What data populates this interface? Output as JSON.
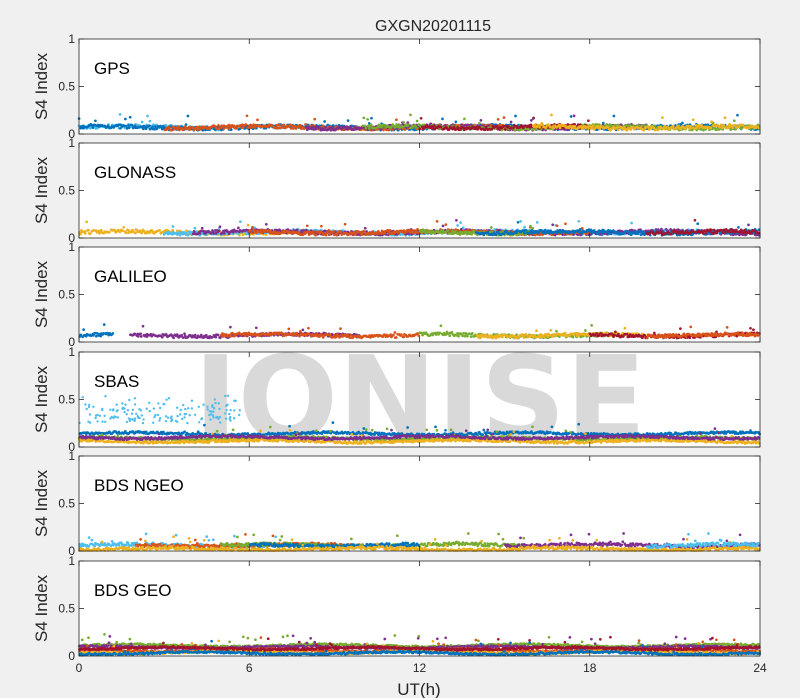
{
  "chart_data": {
    "title": "GXGN20201115",
    "type": "scatter",
    "xlabel": "UT(h)",
    "xlim": [
      0,
      24
    ],
    "xticks": [
      "0",
      "6",
      "12",
      "18",
      "24"
    ],
    "watermark": "IONISE",
    "series_colors": [
      "#0072BD",
      "#D95319",
      "#EDB120",
      "#7E2F8E",
      "#77AC30",
      "#4DBEEE",
      "#A2142F"
    ],
    "panels": [
      {
        "label": "GPS",
        "ylabel": "S4 Index",
        "ylim": [
          0,
          1
        ],
        "yticks": [
          "0",
          "0.5",
          "1"
        ],
        "baseline": 0.07,
        "spread": 0.04,
        "segments": [
          {
            "color": 5,
            "x0": 0,
            "x1": 5
          },
          {
            "color": 0,
            "x0": 0,
            "x1": 24
          },
          {
            "color": 1,
            "x0": 3,
            "x1": 15
          },
          {
            "color": 3,
            "x0": 8,
            "x1": 20
          },
          {
            "color": 4,
            "x0": 10,
            "x1": 24
          },
          {
            "color": 6,
            "x0": 12,
            "x1": 18
          },
          {
            "color": 2,
            "x0": 16,
            "x1": 24
          }
        ]
      },
      {
        "label": "GLONASS",
        "ylabel": "S4 Index",
        "ylim": [
          0,
          1
        ],
        "yticks": [
          "0",
          "0.5",
          "1"
        ],
        "baseline": 0.06,
        "spread": 0.04,
        "segments": [
          {
            "color": 2,
            "x0": 0,
            "x1": 8
          },
          {
            "color": 5,
            "x0": 3,
            "x1": 22
          },
          {
            "color": 3,
            "x0": 4,
            "x1": 24
          },
          {
            "color": 1,
            "x0": 6,
            "x1": 18
          },
          {
            "color": 4,
            "x0": 12,
            "x1": 16
          },
          {
            "color": 0,
            "x0": 14,
            "x1": 24
          },
          {
            "color": 6,
            "x0": 20,
            "x1": 24
          }
        ]
      },
      {
        "label": "GALILEO",
        "ylabel": "S4 Index",
        "ylim": [
          0,
          1
        ],
        "yticks": [
          "0",
          "0.5",
          "1"
        ],
        "baseline": 0.07,
        "spread": 0.035,
        "segments": [
          {
            "color": 0,
            "x0": 0,
            "x1": 1.2
          },
          {
            "color": 3,
            "x0": 1.8,
            "x1": 10
          },
          {
            "color": 1,
            "x0": 5,
            "x1": 12
          },
          {
            "color": 4,
            "x0": 12,
            "x1": 19
          },
          {
            "color": 2,
            "x0": 14,
            "x1": 20
          },
          {
            "color": 6,
            "x0": 18,
            "x1": 24
          },
          {
            "color": 1,
            "x0": 20,
            "x1": 24
          }
        ]
      },
      {
        "label": "SBAS",
        "ylabel": "S4 Index",
        "ylim": [
          0,
          1
        ],
        "yticks": [
          "0",
          "0.5",
          "1"
        ],
        "baseline": 0.14,
        "spread": 0.025,
        "segments": [
          {
            "color": 0,
            "x0": 0,
            "x1": 24
          },
          {
            "color": 4,
            "x0": 0,
            "x1": 24,
            "y": 0.09
          },
          {
            "color": 2,
            "x0": 0,
            "x1": 24,
            "y": 0.06
          },
          {
            "color": 3,
            "x0": 0,
            "x1": 24,
            "y": 0.1
          }
        ],
        "scatter_cloud": {
          "color": 5,
          "x0": 0,
          "x1": 5.7,
          "ymin": 0.25,
          "ymax": 0.55
        }
      },
      {
        "label": "BDS NGEO",
        "ylabel": "S4 Index",
        "ylim": [
          0,
          1
        ],
        "yticks": [
          "0",
          "0.5",
          "1"
        ],
        "baseline": 0.06,
        "spread": 0.035,
        "segments": [
          {
            "color": 5,
            "x0": 0,
            "x1": 7
          },
          {
            "color": 1,
            "x0": 2,
            "x1": 10
          },
          {
            "color": 4,
            "x0": 5,
            "x1": 16
          },
          {
            "color": 0,
            "x0": 6,
            "x1": 12
          },
          {
            "color": 3,
            "x0": 15,
            "x1": 24
          },
          {
            "color": 2,
            "x0": 0,
            "x1": 24,
            "y": 0.02
          },
          {
            "color": 5,
            "x0": 20,
            "x1": 24
          }
        ]
      },
      {
        "label": "BDS GEO",
        "ylabel": "S4 Index",
        "ylim": [
          0,
          1
        ],
        "yticks": [
          "0",
          "0.5",
          "1"
        ],
        "baseline": 0.1,
        "spread": 0.02,
        "segments": [
          {
            "color": 4,
            "x0": 0,
            "x1": 24,
            "y": 0.11
          },
          {
            "color": 3,
            "x0": 0,
            "x1": 24,
            "y": 0.09
          },
          {
            "color": 1,
            "x0": 0,
            "x1": 24,
            "y": 0.06
          },
          {
            "color": 2,
            "x0": 0,
            "x1": 24,
            "y": 0.04
          },
          {
            "color": 0,
            "x0": 0,
            "x1": 24,
            "y": 0.03
          },
          {
            "color": 6,
            "x0": 0,
            "x1": 24,
            "y": 0.08
          }
        ]
      }
    ]
  }
}
